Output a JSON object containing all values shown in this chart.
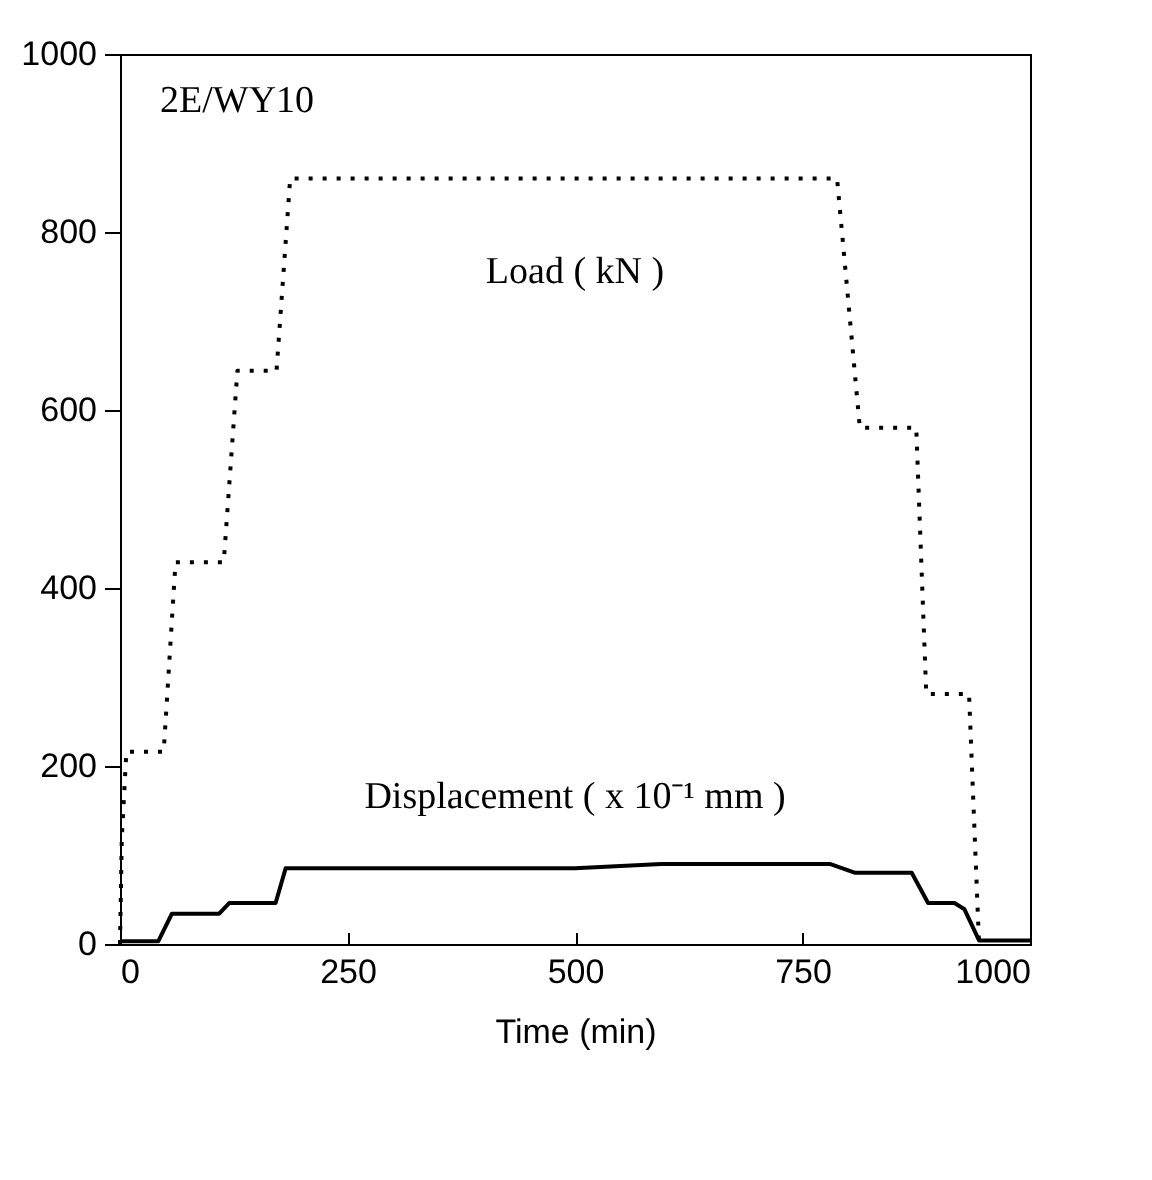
{
  "chart_data": {
    "type": "line",
    "xlabel": "Time (min)",
    "xlim": [
      0,
      1000
    ],
    "xticks": [
      0,
      250,
      500,
      750,
      1000
    ],
    "ylim": [
      0,
      1000
    ],
    "yticks": [
      0,
      200,
      400,
      600,
      800,
      1000
    ],
    "marker": "none",
    "annotations": [
      "2E/WY10"
    ],
    "series": [
      {
        "name": "Load ( kN )",
        "color": "#000000",
        "line_style": "dotted",
        "x": [
          0,
          2,
          7,
          48,
          61,
          114,
          129,
          172,
          187,
          788,
          813,
          875,
          886,
          933,
          944
        ],
        "values": [
          0,
          120,
          216,
          216,
          429,
          429,
          644,
          644,
          860,
          860,
          580,
          580,
          281,
          281,
          0
        ]
      },
      {
        "name": "Displacement ( x 10⁻¹ mm )",
        "color": "#000000",
        "line_style": "solid",
        "x": [
          0,
          42,
          57,
          109,
          120,
          171,
          182,
          500,
          595,
          780,
          808,
          870,
          888,
          917,
          928,
          944,
          1000
        ],
        "values": [
          3,
          3,
          34,
          34,
          46,
          46,
          85,
          85,
          90,
          90,
          80,
          80,
          46,
          46,
          39,
          4,
          4
        ]
      }
    ]
  }
}
